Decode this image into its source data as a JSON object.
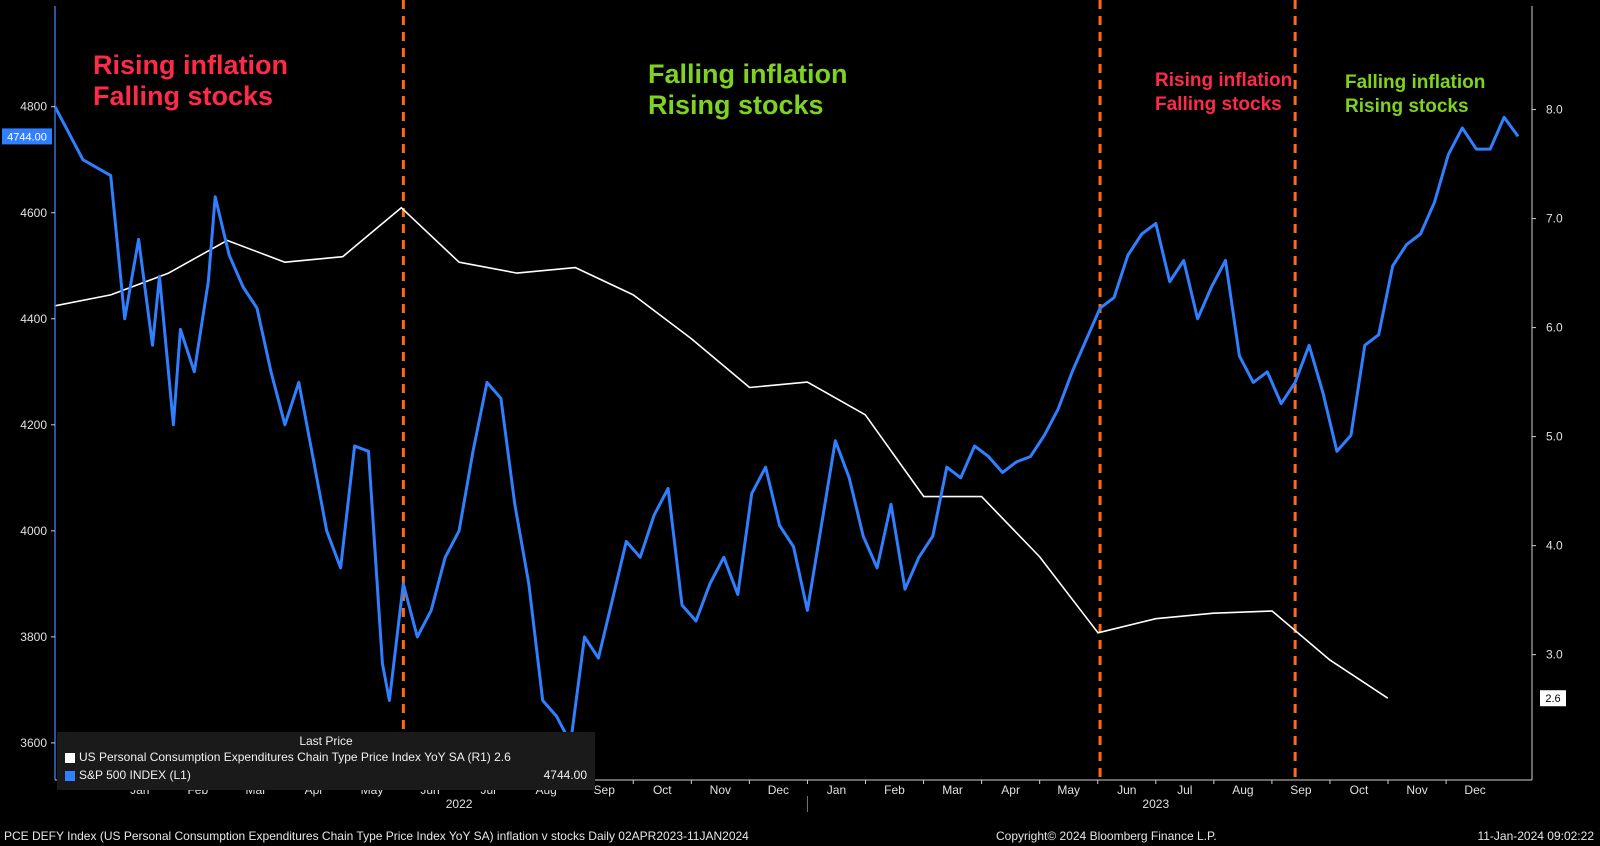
{
  "footer": {
    "description": "PCE DEFY Index (US Personal Consumption Expenditures Chain Type Price Index YoY SA) inflation v stocks  Daily 02APR2023-11JAN2024",
    "copyright": "Copyright© 2024 Bloomberg Finance L.P.",
    "timestamp": "11-Jan-2024 09:02:22"
  },
  "legend": {
    "header": "Last Price",
    "items": [
      {
        "label": "US Personal Consumption Expenditures Chain Type Price Index YoY SA  (R1) 2.6",
        "last": "",
        "color": "#ffffff"
      },
      {
        "label": "S&P 500 INDEX  (L1)",
        "last": "4744.00",
        "color": "#2f7fff"
      }
    ]
  },
  "annotations": [
    {
      "line1": "Rising inflation",
      "line2": "Falling stocks",
      "color": "#ff2a4a"
    },
    {
      "line1": "Falling inflation",
      "line2": "Rising stocks",
      "color": "#7ed321"
    },
    {
      "line1": "Rising inflation",
      "line2": "Falling stocks",
      "color": "#ff2a4a"
    },
    {
      "line1": "Falling inflation",
      "line2": "Rising stocks",
      "color": "#7ed321"
    }
  ],
  "chart_data": {
    "type": "line",
    "x_axis": {
      "months": [
        "Jan",
        "Feb",
        "Mar",
        "Apr",
        "May",
        "Jun",
        "Jul",
        "Aug",
        "Sep",
        "Oct",
        "Nov",
        "Dec",
        "Jan",
        "Feb",
        "Mar",
        "Apr",
        "May",
        "Jun",
        "Jul",
        "Aug",
        "Sep",
        "Oct",
        "Nov",
        "Dec"
      ],
      "years": [
        "2022",
        "2023"
      ]
    },
    "y_left": {
      "min": 3530,
      "max": 4990,
      "ticks": [
        3600,
        3800,
        4000,
        4200,
        4400,
        4600,
        4800
      ]
    },
    "y_right": {
      "min": 1.85,
      "max": 8.95,
      "ticks": [
        "3.0",
        "4.0",
        "5.0",
        "6.0",
        "7.0",
        "8.0"
      ]
    },
    "dividers": [
      2022.42,
      2023.42,
      2023.7
    ],
    "last_labels": {
      "left": "4744.00",
      "right": "2.6"
    },
    "series": [
      {
        "name": "US Personal Consumption Expenditures Chain Type Price Index YoY SA",
        "axis": "right",
        "color": "#ffffff",
        "x": [
          2021.92,
          2022.0,
          2022.083,
          2022.167,
          2022.25,
          2022.333,
          2022.417,
          2022.5,
          2022.583,
          2022.667,
          2022.75,
          2022.833,
          2022.917,
          2023.0,
          2023.083,
          2023.167,
          2023.25,
          2023.333,
          2023.417,
          2023.5,
          2023.583,
          2023.667,
          2023.75,
          2023.833
        ],
        "values": [
          6.2,
          6.3,
          6.5,
          6.8,
          6.6,
          6.65,
          7.1,
          6.6,
          6.5,
          6.55,
          6.3,
          5.9,
          5.45,
          5.5,
          5.2,
          4.45,
          4.45,
          3.9,
          3.2,
          3.33,
          3.38,
          3.4,
          2.95,
          2.6
        ]
      },
      {
        "name": "S&P 500 INDEX",
        "axis": "left",
        "color": "#2f7fff",
        "x": [
          2021.92,
          2021.96,
          2022.0,
          2022.02,
          2022.04,
          2022.06,
          2022.07,
          2022.09,
          2022.1,
          2022.12,
          2022.14,
          2022.15,
          2022.17,
          2022.19,
          2022.21,
          2022.23,
          2022.25,
          2022.27,
          2022.29,
          2022.31,
          2022.33,
          2022.35,
          2022.37,
          2022.39,
          2022.4,
          2022.42,
          2022.44,
          2022.46,
          2022.48,
          2022.5,
          2022.52,
          2022.54,
          2022.56,
          2022.58,
          2022.6,
          2022.62,
          2022.64,
          2022.66,
          2022.68,
          2022.7,
          2022.72,
          2022.74,
          2022.76,
          2022.78,
          2022.8,
          2022.82,
          2022.84,
          2022.86,
          2022.88,
          2022.9,
          2022.92,
          2022.94,
          2022.96,
          2022.98,
          2023.0,
          2023.02,
          2023.04,
          2023.06,
          2023.08,
          2023.1,
          2023.12,
          2023.14,
          2023.16,
          2023.18,
          2023.2,
          2023.22,
          2023.24,
          2023.26,
          2023.28,
          2023.3,
          2023.32,
          2023.34,
          2023.36,
          2023.38,
          2023.4,
          2023.42,
          2023.44,
          2023.46,
          2023.48,
          2023.5,
          2023.52,
          2023.54,
          2023.56,
          2023.58,
          2023.6,
          2023.62,
          2023.64,
          2023.66,
          2023.68,
          2023.7,
          2023.72,
          2023.74,
          2023.76,
          2023.78,
          2023.8,
          2023.82,
          2023.84,
          2023.86,
          2023.88,
          2023.9,
          2023.92,
          2023.94,
          2023.96,
          2023.98,
          2024.0,
          2024.02
        ],
        "values": [
          4800,
          4700,
          4670,
          4400,
          4550,
          4350,
          4480,
          4200,
          4380,
          4300,
          4470,
          4630,
          4520,
          4460,
          4420,
          4300,
          4200,
          4280,
          4140,
          4000,
          3930,
          4160,
          4150,
          3750,
          3680,
          3900,
          3800,
          3850,
          3950,
          4000,
          4150,
          4280,
          4250,
          4050,
          3900,
          3680,
          3650,
          3600,
          3800,
          3760,
          3870,
          3980,
          3950,
          4030,
          4080,
          3860,
          3830,
          3900,
          3950,
          3880,
          4070,
          4120,
          4010,
          3970,
          3850,
          4010,
          4170,
          4100,
          3990,
          3930,
          4050,
          3890,
          3950,
          3990,
          4120,
          4100,
          4160,
          4140,
          4110,
          4130,
          4140,
          4180,
          4230,
          4300,
          4360,
          4420,
          4440,
          4520,
          4560,
          4580,
          4470,
          4510,
          4400,
          4460,
          4510,
          4330,
          4280,
          4300,
          4240,
          4280,
          4350,
          4260,
          4150,
          4180,
          4350,
          4370,
          4500,
          4540,
          4560,
          4620,
          4710,
          4760,
          4720,
          4720,
          4780,
          4744
        ]
      }
    ]
  }
}
